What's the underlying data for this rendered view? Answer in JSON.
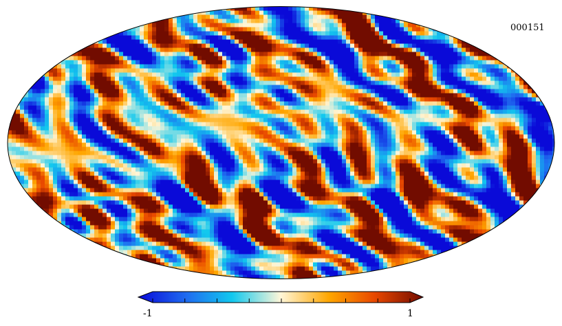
{
  "map": {
    "id_label": "000151",
    "projection": "mollweide",
    "colormap": [
      "#0a0ad8",
      "#1f6cf0",
      "#12c8ee",
      "#fff6d8",
      "#ffa600",
      "#e84800",
      "#720c00"
    ]
  },
  "colorbar": {
    "min_label": "-1",
    "max_label": "1",
    "range": [
      -1,
      1
    ],
    "tick_count": 9
  }
}
